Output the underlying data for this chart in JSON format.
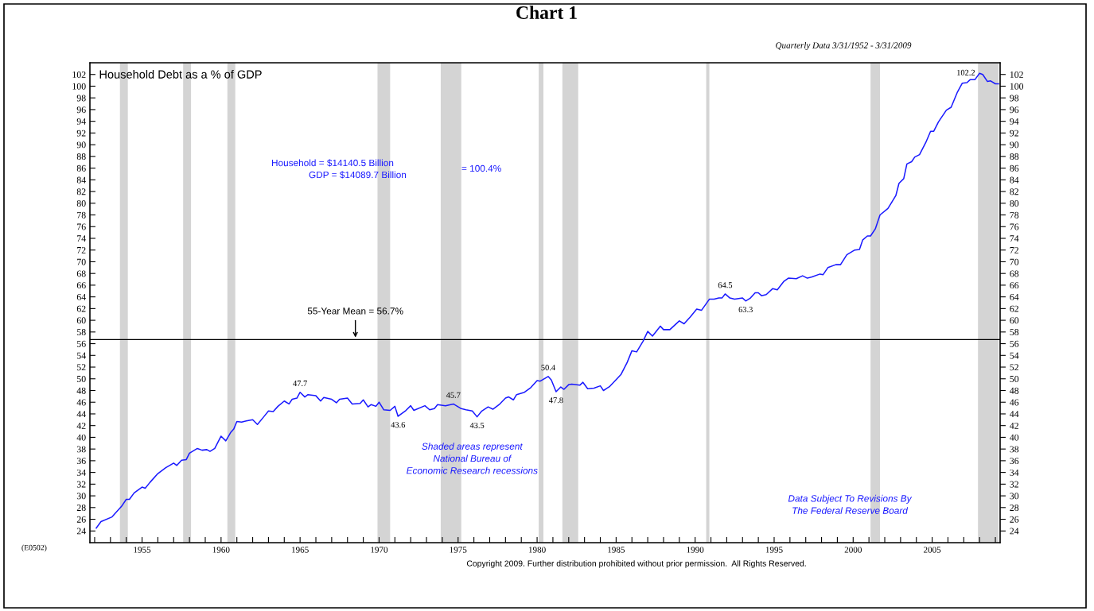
{
  "chart_data": {
    "type": "line",
    "title": "Chart 1",
    "subtitle": "Household Debt as a % of GDP",
    "annotations": [
      "Quarterly Data 3/31/1952 - 3/31/2009",
      "Household = $14140.5 Billion",
      "GDP = $14089.7 Billion",
      "= 100.4%",
      "Shaded areas represent\nNational Bureau of\nEconomic Research recessions",
      "Data Subject To Revisions By\nThe Federal Reserve Board",
      "(E0502)",
      "Copyright 2009. Further distribution prohibited without prior permission.  All Rights Reserved.",
      {
        "text": "47.7",
        "x": 1965.0,
        "y": 47.7
      },
      {
        "text": "43.6",
        "x": 1971.2,
        "y": 43.6
      },
      {
        "text": "45.7",
        "x": 1974.7,
        "y": 45.7
      },
      {
        "text": "43.5",
        "x": 1976.2,
        "y": 43.5
      },
      {
        "text": "50.4",
        "x": 1980.7,
        "y": 50.4
      },
      {
        "text": "47.8",
        "x": 1981.2,
        "y": 47.8
      },
      {
        "text": "64.5",
        "x": 1991.9,
        "y": 64.5
      },
      {
        "text": "63.3",
        "x": 1993.2,
        "y": 63.3
      },
      {
        "text": "102.2",
        "x": 2008.0,
        "y": 102.2
      }
    ],
    "series": [
      {
        "color": "#1a1aff",
        "x": [
          1952.1,
          1952.4,
          1953.1,
          1953.7,
          1954.0,
          1954.2,
          1954.5,
          1955.0,
          1955.2,
          1955.5,
          1956.0,
          1956.5,
          1957.0,
          1957.2,
          1957.5,
          1957.8,
          1958.0,
          1958.5,
          1958.8,
          1959.1,
          1959.3,
          1959.6,
          1960.0,
          1960.3,
          1960.6,
          1960.8,
          1961.0,
          1961.3,
          1961.6,
          1962.0,
          1962.3,
          1962.7,
          1963.0,
          1963.3,
          1963.6,
          1964.0,
          1964.3,
          1964.5,
          1964.8,
          1965.0,
          1965.3,
          1965.5,
          1966.0,
          1966.3,
          1966.5,
          1967.0,
          1967.3,
          1967.5,
          1968.0,
          1968.3,
          1968.8,
          1969.0,
          1969.3,
          1969.5,
          1969.8,
          1970.0,
          1970.3,
          1970.7,
          1971.0,
          1971.2,
          1971.7,
          1972.0,
          1972.2,
          1972.9,
          1973.2,
          1973.5,
          1973.7,
          1974.2,
          1974.7,
          1975.2,
          1975.5,
          1975.9,
          1976.2,
          1976.5,
          1976.9,
          1977.2,
          1977.6,
          1978.0,
          1978.2,
          1978.5,
          1978.7,
          1979.2,
          1979.6,
          1980.0,
          1980.2,
          1980.7,
          1980.9,
          1981.2,
          1981.5,
          1981.7,
          1982.0,
          1982.2,
          1982.7,
          1982.9,
          1983.2,
          1983.6,
          1984.0,
          1984.2,
          1984.6,
          1985.3,
          1985.7,
          1986.0,
          1986.3,
          1986.7,
          1987.0,
          1987.3,
          1987.8,
          1988.0,
          1988.4,
          1989.0,
          1989.3,
          1989.7,
          1990.1,
          1990.4,
          1990.9,
          1991.2,
          1991.5,
          1991.7,
          1991.9,
          1992.2,
          1992.5,
          1993.0,
          1993.2,
          1993.5,
          1993.8,
          1994.0,
          1994.2,
          1994.5,
          1994.9,
          1995.2,
          1995.6,
          1995.9,
          1996.4,
          1996.8,
          1997.1,
          1997.4,
          1997.9,
          1998.1,
          1998.4,
          1998.9,
          1999.2,
          1999.6,
          2000.1,
          2000.4,
          2000.6,
          2000.9,
          2001.1,
          2001.4,
          2001.7,
          2002.2,
          2002.7,
          2002.9,
          2003.2,
          2003.4,
          2003.7,
          2003.9,
          2004.2,
          2004.6,
          2004.9,
          2005.1,
          2005.4,
          2005.9,
          2006.2,
          2006.6,
          2006.9,
          2007.2,
          2007.4,
          2007.7,
          2008.0,
          2008.2,
          2008.5,
          2008.7,
          2009.0,
          2009.2
        ],
        "values": [
          24.5,
          25.6,
          26.4,
          28.2,
          29.4,
          29.4,
          30.5,
          31.5,
          31.3,
          32.3,
          33.8,
          34.8,
          35.6,
          35.2,
          36.1,
          36.2,
          37.3,
          38.1,
          37.8,
          37.9,
          37.6,
          38.1,
          40.2,
          39.4,
          40.8,
          41.4,
          42.7,
          42.6,
          42.8,
          43.0,
          42.2,
          43.5,
          44.5,
          44.4,
          45.3,
          46.2,
          45.7,
          46.5,
          46.7,
          47.7,
          46.9,
          47.3,
          47.1,
          46.2,
          46.8,
          46.5,
          45.9,
          46.5,
          46.7,
          45.7,
          45.8,
          46.4,
          45.2,
          45.6,
          45.3,
          46.0,
          44.7,
          44.6,
          45.3,
          43.6,
          44.6,
          45.4,
          44.6,
          45.4,
          44.7,
          44.9,
          45.6,
          45.4,
          45.7,
          44.9,
          44.7,
          44.5,
          43.5,
          44.5,
          45.2,
          44.8,
          45.6,
          46.7,
          46.9,
          46.4,
          47.3,
          47.7,
          48.5,
          49.7,
          49.6,
          50.4,
          49.8,
          47.8,
          48.6,
          48.2,
          49.0,
          49.1,
          48.9,
          49.4,
          48.3,
          48.4,
          48.8,
          48.0,
          48.7,
          50.7,
          52.8,
          54.8,
          54.6,
          56.4,
          58.1,
          57.3,
          59.0,
          58.4,
          58.4,
          59.9,
          59.4,
          60.6,
          61.9,
          61.7,
          63.6,
          63.6,
          63.8,
          63.8,
          64.5,
          63.8,
          63.6,
          63.8,
          63.3,
          63.8,
          64.7,
          64.7,
          64.2,
          64.4,
          65.4,
          65.2,
          66.6,
          67.2,
          67.1,
          67.6,
          67.2,
          67.4,
          67.9,
          67.8,
          69.0,
          69.5,
          69.5,
          71.2,
          72.0,
          72.1,
          73.7,
          74.4,
          74.4,
          75.6,
          78.0,
          79.1,
          81.3,
          83.4,
          84.2,
          86.7,
          87.1,
          87.9,
          88.3,
          90.4,
          92.3,
          92.3,
          93.9,
          95.9,
          96.4,
          99.0,
          100.5,
          100.6,
          101.1,
          101.1,
          102.2,
          102.0,
          100.8,
          100.9,
          100.4,
          100.4
        ]
      }
    ],
    "xlim": [
      1951.7,
      2009.3
    ],
    "xticks": [
      {
        "value": 1952,
        "label": null
      },
      {
        "value": 1953,
        "label": null
      },
      {
        "value": 1954,
        "label": null
      },
      1955,
      {
        "value": 1956,
        "label": null
      },
      {
        "value": 1957,
        "label": null
      },
      {
        "value": 1958,
        "label": null
      },
      {
        "value": 1959,
        "label": null
      },
      1960,
      {
        "value": 1961,
        "label": null
      },
      {
        "value": 1962,
        "label": null
      },
      {
        "value": 1963,
        "label": null
      },
      {
        "value": 1964,
        "label": null
      },
      1965,
      {
        "value": 1966,
        "label": null
      },
      {
        "value": 1967,
        "label": null
      },
      {
        "value": 1968,
        "label": null
      },
      {
        "value": 1969,
        "label": null
      },
      1970,
      {
        "value": 1971,
        "label": null
      },
      {
        "value": 1972,
        "label": null
      },
      {
        "value": 1973,
        "label": null
      },
      {
        "value": 1974,
        "label": null
      },
      1975,
      {
        "value": 1976,
        "label": null
      },
      {
        "value": 1977,
        "label": null
      },
      {
        "value": 1978,
        "label": null
      },
      {
        "value": 1979,
        "label": null
      },
      1980,
      {
        "value": 1981,
        "label": null
      },
      {
        "value": 1982,
        "label": null
      },
      {
        "value": 1983,
        "label": null
      },
      {
        "value": 1984,
        "label": null
      },
      1985,
      {
        "value": 1986,
        "label": null
      },
      {
        "value": 1987,
        "label": null
      },
      {
        "value": 1988,
        "label": null
      },
      {
        "value": 1989,
        "label": null
      },
      1990,
      {
        "value": 1991,
        "label": null
      },
      {
        "value": 1992,
        "label": null
      },
      {
        "value": 1993,
        "label": null
      },
      {
        "value": 1994,
        "label": null
      },
      1995,
      {
        "value": 1996,
        "label": null
      },
      {
        "value": 1997,
        "label": null
      },
      {
        "value": 1998,
        "label": null
      },
      {
        "value": 1999,
        "label": null
      },
      2000,
      {
        "value": 2001,
        "label": null
      },
      {
        "value": 2002,
        "label": null
      },
      {
        "value": 2003,
        "label": null
      },
      {
        "value": 2004,
        "label": null
      },
      2005,
      {
        "value": 2006,
        "label": null
      },
      {
        "value": 2007,
        "label": null
      },
      {
        "value": 2008,
        "label": null
      },
      {
        "value": 2009,
        "label": null
      }
    ],
    "ylim": [
      22,
      104
    ],
    "yticks": [
      24,
      26,
      28,
      30,
      32,
      34,
      36,
      38,
      40,
      42,
      44,
      46,
      48,
      50,
      52,
      54,
      56,
      58,
      60,
      62,
      64,
      66,
      68,
      70,
      72,
      74,
      76,
      78,
      80,
      82,
      84,
      86,
      88,
      90,
      92,
      94,
      96,
      98,
      100,
      102
    ],
    "y2lim": [
      22,
      104
    ],
    "y2ticks": [
      24,
      26,
      28,
      30,
      32,
      34,
      36,
      38,
      40,
      42,
      44,
      46,
      48,
      50,
      52,
      54,
      56,
      58,
      60,
      62,
      64,
      66,
      68,
      70,
      72,
      74,
      76,
      78,
      80,
      82,
      84,
      86,
      88,
      90,
      92,
      94,
      96,
      98,
      100,
      102
    ],
    "ref_lines": [
      {
        "axis": "y",
        "value": 56.7,
        "label": "55-Year Mean = 56.7%",
        "color": "#000000"
      }
    ],
    "bands": [
      {
        "axis": "x",
        "from": 1953.6,
        "to": 1954.1,
        "color": "#d4d4d4"
      },
      {
        "axis": "x",
        "from": 1957.6,
        "to": 1958.1,
        "color": "#d4d4d4"
      },
      {
        "axis": "x",
        "from": 1960.4,
        "to": 1960.9,
        "color": "#d4d4d4"
      },
      {
        "axis": "x",
        "from": 1969.9,
        "to": 1970.7,
        "color": "#d4d4d4"
      },
      {
        "axis": "x",
        "from": 1973.9,
        "to": 1975.2,
        "color": "#d4d4d4"
      },
      {
        "axis": "x",
        "from": 1980.1,
        "to": 1980.4,
        "color": "#d4d4d4"
      },
      {
        "axis": "x",
        "from": 1981.6,
        "to": 1982.6,
        "color": "#d4d4d4"
      },
      {
        "axis": "x",
        "from": 1990.7,
        "to": 1990.9,
        "color": "#d4d4d4"
      },
      {
        "axis": "x",
        "from": 2001.1,
        "to": 2001.7,
        "color": "#d4d4d4"
      },
      {
        "axis": "x",
        "from": 2007.9,
        "to": 2009.2,
        "color": "#d4d4d4"
      }
    ]
  }
}
